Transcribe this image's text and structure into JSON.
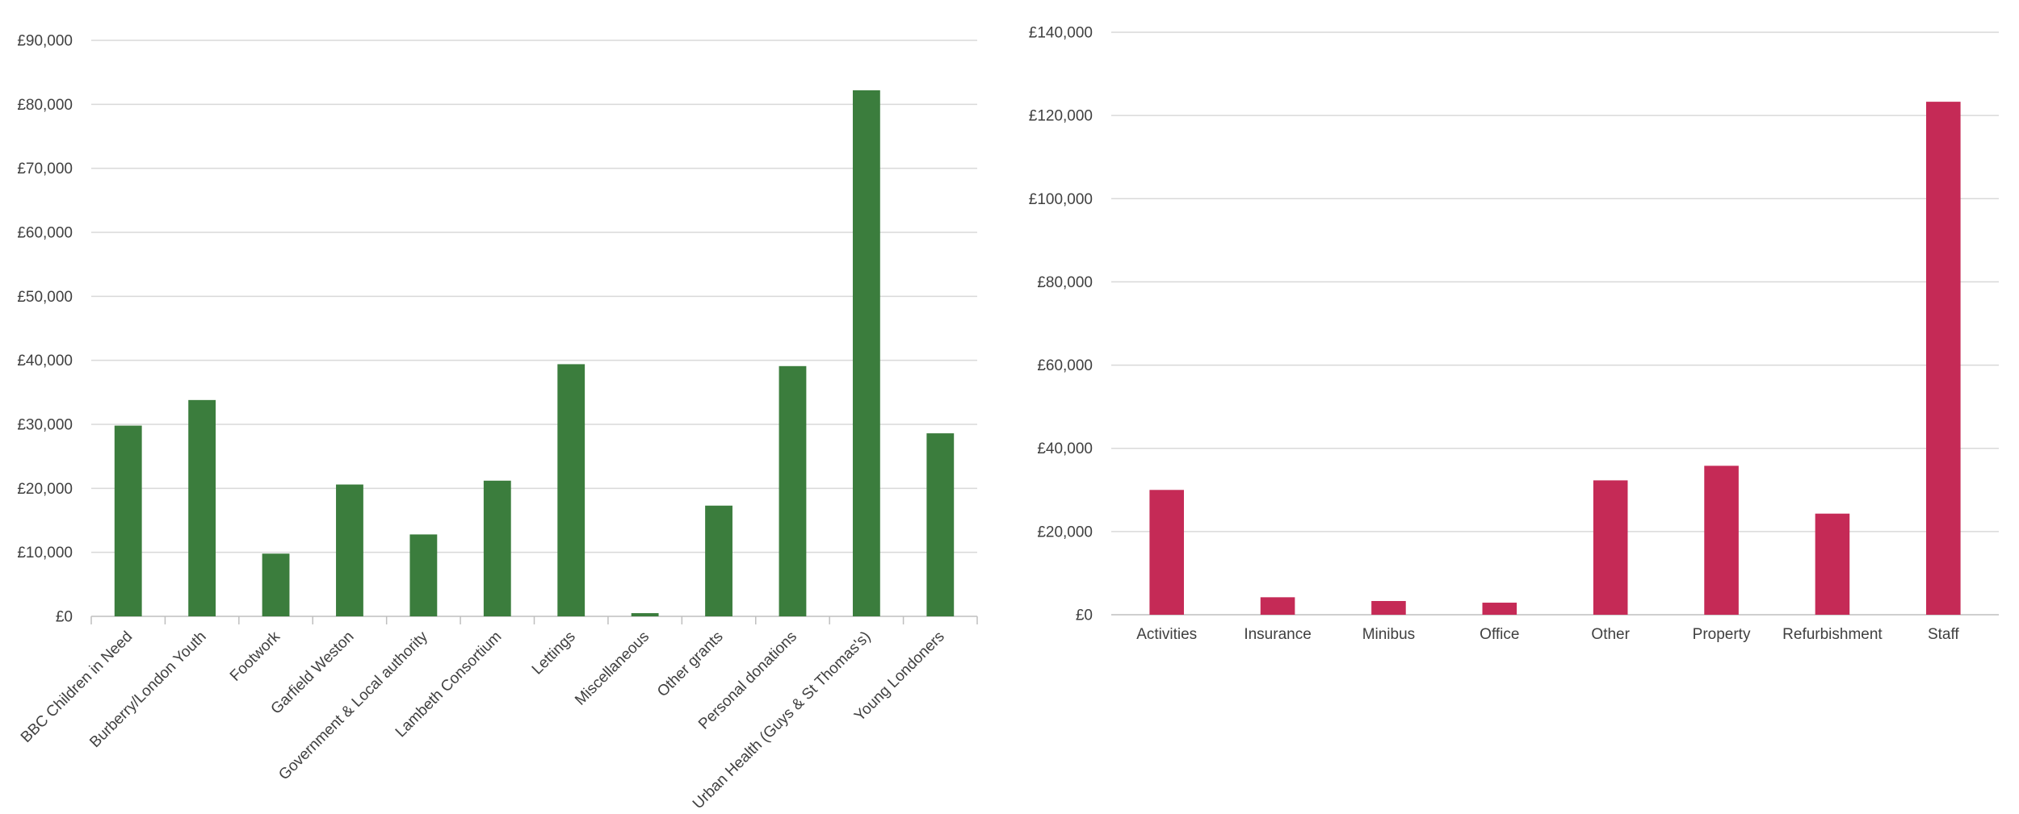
{
  "chart_data": [
    {
      "type": "bar",
      "title": "",
      "xlabel": "",
      "ylabel": "",
      "categories": [
        "BBC Children in Need",
        "Burberry/London Youth",
        "Footwork",
        "Garfield Weston",
        "Government & Local authority",
        "Lambeth Consortium",
        "Lettings",
        "Miscellaneous",
        "Other grants",
        "Personal donations",
        "Urban Health (Guys & St Thomas's)",
        "Young Londoners"
      ],
      "values": [
        29800,
        33800,
        9800,
        20600,
        12800,
        21200,
        39400,
        500,
        17300,
        39100,
        82200,
        28600
      ],
      "ylim": [
        0,
        90000
      ],
      "yticks": [
        0,
        10000,
        20000,
        30000,
        40000,
        50000,
        60000,
        70000,
        80000,
        90000
      ],
      "ytick_labels": [
        "£0",
        "£10,000",
        "£20,000",
        "£30,000",
        "£40,000",
        "£50,000",
        "£60,000",
        "£70,000",
        "£80,000",
        "£90,000"
      ],
      "grid": true,
      "legend": "none",
      "color": "#3b7d3d"
    },
    {
      "type": "bar",
      "title": "",
      "xlabel": "",
      "ylabel": "",
      "categories": [
        "Activities",
        "Insurance",
        "Minibus",
        "Office",
        "Other",
        "Property",
        "Refurbishment",
        "Staff"
      ],
      "values": [
        30000,
        4200,
        3300,
        2900,
        32300,
        35800,
        24300,
        123300
      ],
      "ylim": [
        0,
        140000
      ],
      "yticks": [
        0,
        20000,
        40000,
        60000,
        80000,
        100000,
        120000,
        140000
      ],
      "ytick_labels": [
        "£0",
        "£20,000",
        "£40,000",
        "£60,000",
        "£80,000",
        "£100,000",
        "£120,000",
        "£140,000"
      ],
      "grid": true,
      "legend": "none",
      "color": "#c52a56"
    }
  ]
}
